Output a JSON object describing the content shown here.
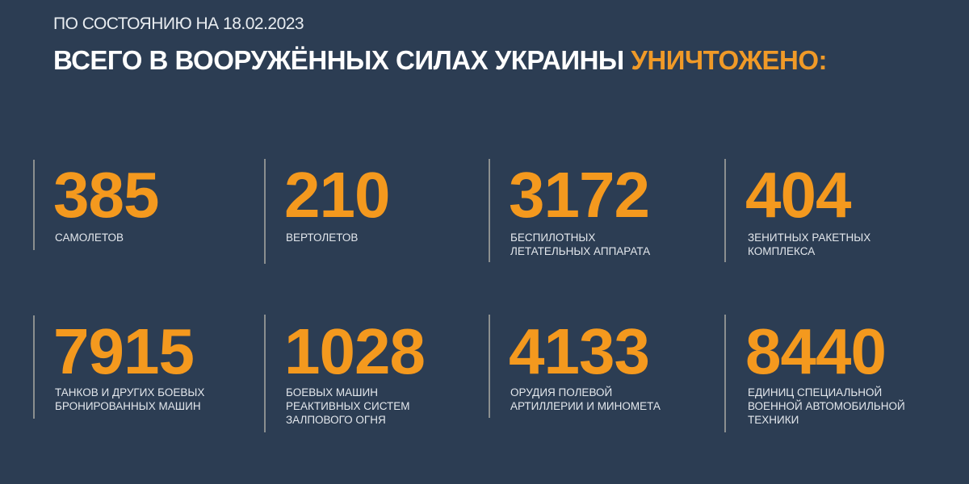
{
  "header": {
    "subtitle": "ПО СОСТОЯНИЮ НА 18.02.2023",
    "title_main": "ВСЕГО В ВООРУЖЁННЫХ СИЛАХ УКРАИНЫ",
    "title_accent": "УНИЧТОЖЕНО:"
  },
  "colors": {
    "background": "#2c3d53",
    "accent": "#f4991e",
    "text": "#ffffff"
  },
  "stats": [
    {
      "value": "385",
      "label": "САМОЛЕТОВ"
    },
    {
      "value": "210",
      "label": "ВЕРТОЛЕТОВ"
    },
    {
      "value": "3172",
      "label": "БЕСПИЛОТНЫХ\nЛЕТАТЕЛЬНЫХ АППАРАТА"
    },
    {
      "value": "404",
      "label": "ЗЕНИТНЫХ РАКЕТНЫХ\nКОМПЛЕКСА"
    },
    {
      "value": "7915",
      "label": "ТАНКОВ И ДРУГИХ БОЕВЫХ\nБРОНИРОВАННЫХ МАШИН"
    },
    {
      "value": "1028",
      "label": "БОЕВЫХ МАШИН\nРЕАКТИВНЫХ СИСТЕМ\nЗАЛПОВОГО ОГНЯ"
    },
    {
      "value": "4133",
      "label": "ОРУДИЯ ПОЛЕВОЙ\nАРТИЛЛЕРИИ И МИНОМЕТА"
    },
    {
      "value": "8440",
      "label": "ЕДИНИЦ СПЕЦИАЛЬНОЙ\nВОЕННОЙ АВТОМОБИЛЬНОЙ\nТЕХНИКИ"
    }
  ]
}
